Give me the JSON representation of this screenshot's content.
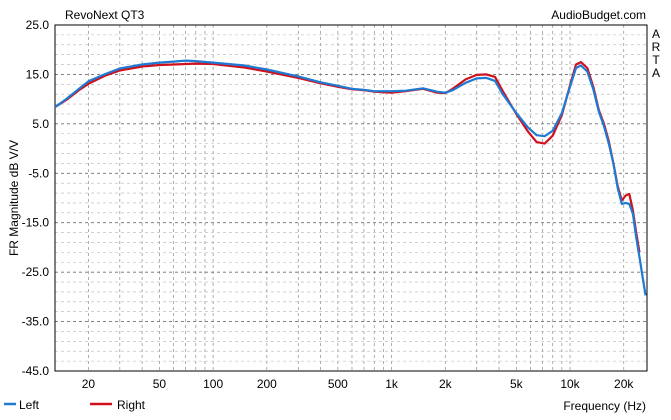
{
  "chart_data": {
    "type": "line",
    "title": "RevoNext QT3",
    "source": "AudioBudget.com",
    "side_label": [
      "A",
      "R",
      "T",
      "A"
    ],
    "xlabel": "Frequency (Hz)",
    "ylabel": "FR Magnitude dB V/V",
    "xscale": "log",
    "xlim": [
      13,
      27000
    ],
    "ylim": [
      -45,
      25
    ],
    "grid": true,
    "legend_position": "bottom-left",
    "y_ticks": [
      25,
      15,
      5,
      -5,
      -15,
      -25,
      -35,
      -45
    ],
    "y_tick_labels": [
      "25.0",
      "15.0",
      "5.0",
      "-5.0",
      "-15.0",
      "-25.0",
      "-35.0",
      "-45.0"
    ],
    "x_ticks": [
      20,
      50,
      100,
      200,
      500,
      1000,
      2000,
      5000,
      10000,
      20000
    ],
    "x_tick_labels": [
      "20",
      "50",
      "100",
      "200",
      "500",
      "1k",
      "2k",
      "5k",
      "10k",
      "20k"
    ],
    "series": [
      {
        "name": "Left",
        "color": "#1e7ad2",
        "points": [
          [
            13,
            8.4
          ],
          [
            15,
            10
          ],
          [
            18,
            12.3
          ],
          [
            20,
            13.6
          ],
          [
            25,
            15.1
          ],
          [
            30,
            16.2
          ],
          [
            40,
            17
          ],
          [
            50,
            17.4
          ],
          [
            60,
            17.6
          ],
          [
            70,
            17.8
          ],
          [
            80,
            17.7
          ],
          [
            100,
            17.4
          ],
          [
            150,
            16.8
          ],
          [
            200,
            16
          ],
          [
            300,
            14.6
          ],
          [
            400,
            13.4
          ],
          [
            500,
            12.7
          ],
          [
            600,
            12.1
          ],
          [
            700,
            11.9
          ],
          [
            800,
            11.6
          ],
          [
            1000,
            11.6
          ],
          [
            1200,
            11.7
          ],
          [
            1500,
            12.2
          ],
          [
            1800,
            11.5
          ],
          [
            2000,
            11.3
          ],
          [
            2200,
            11.8
          ],
          [
            2600,
            13.3
          ],
          [
            3000,
            14.2
          ],
          [
            3400,
            14.3
          ],
          [
            3800,
            13.7
          ],
          [
            4200,
            11
          ],
          [
            5000,
            7.2
          ],
          [
            5800,
            4.3
          ],
          [
            6500,
            2.7
          ],
          [
            7200,
            2.5
          ],
          [
            8000,
            3.6
          ],
          [
            9000,
            7.2
          ],
          [
            10000,
            12.5
          ],
          [
            10800,
            16.3
          ],
          [
            11500,
            16.8
          ],
          [
            12500,
            15.6
          ],
          [
            13500,
            12
          ],
          [
            14500,
            7.5
          ],
          [
            15500,
            4.5
          ],
          [
            16500,
            1
          ],
          [
            17500,
            -3
          ],
          [
            18500,
            -8
          ],
          [
            19500,
            -11.2
          ],
          [
            20500,
            -11
          ],
          [
            21500,
            -11.2
          ],
          [
            22500,
            -13.2
          ],
          [
            23500,
            -18
          ],
          [
            24500,
            -22
          ],
          [
            25500,
            -26
          ],
          [
            26500,
            -29.7
          ]
        ]
      },
      {
        "name": "Right",
        "color": "#d0101c",
        "points": [
          [
            13,
            8.4
          ],
          [
            15,
            9.8
          ],
          [
            18,
            12
          ],
          [
            20,
            13.1
          ],
          [
            25,
            14.8
          ],
          [
            30,
            15.8
          ],
          [
            40,
            16.6
          ],
          [
            50,
            16.9
          ],
          [
            60,
            17
          ],
          [
            70,
            17.1
          ],
          [
            80,
            17.2
          ],
          [
            100,
            17.1
          ],
          [
            150,
            16.4
          ],
          [
            200,
            15.6
          ],
          [
            300,
            14.3
          ],
          [
            400,
            13.2
          ],
          [
            500,
            12.5
          ],
          [
            600,
            12
          ],
          [
            700,
            11.8
          ],
          [
            800,
            11.5
          ],
          [
            1000,
            11.3
          ],
          [
            1200,
            11.6
          ],
          [
            1500,
            12.1
          ],
          [
            1800,
            11.3
          ],
          [
            2000,
            11.2
          ],
          [
            2200,
            12.1
          ],
          [
            2600,
            14
          ],
          [
            3000,
            14.9
          ],
          [
            3400,
            15
          ],
          [
            3800,
            14.5
          ],
          [
            4200,
            11.6
          ],
          [
            5000,
            7
          ],
          [
            5800,
            3.5
          ],
          [
            6500,
            1.3
          ],
          [
            7200,
            1
          ],
          [
            8000,
            2.6
          ],
          [
            9000,
            6.8
          ],
          [
            10000,
            12.8
          ],
          [
            10800,
            17
          ],
          [
            11500,
            17.5
          ],
          [
            12500,
            16.3
          ],
          [
            13500,
            12.5
          ],
          [
            14500,
            7.8
          ],
          [
            15500,
            5
          ],
          [
            16500,
            1.5
          ],
          [
            17500,
            -3
          ],
          [
            18500,
            -7.6
          ],
          [
            19500,
            -10.5
          ],
          [
            20500,
            -9.5
          ],
          [
            21500,
            -9.2
          ],
          [
            22500,
            -12.5
          ],
          [
            23500,
            -17
          ],
          [
            24500,
            -21
          ]
        ]
      }
    ]
  }
}
